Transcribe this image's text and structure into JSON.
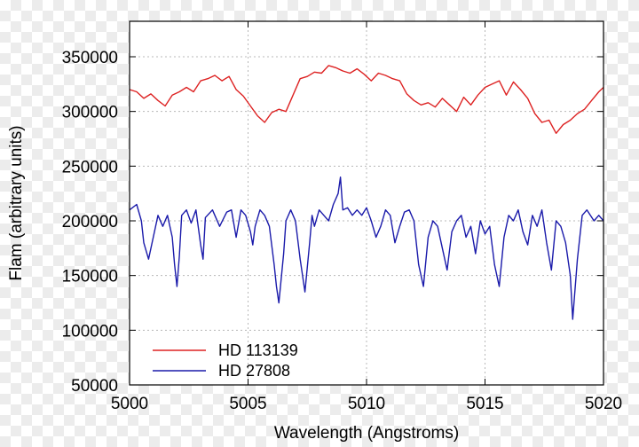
{
  "chart_data": {
    "type": "line",
    "xlabel": "Wavelength (Angstroms)",
    "ylabel": "Flam (arbitrary units)",
    "xlim": [
      5000,
      5020
    ],
    "ylim": [
      50000,
      380000
    ],
    "xticks": [
      5000,
      5005,
      5010,
      5015,
      5020
    ],
    "xtick_labels": [
      "5000",
      "5005",
      "5010",
      "5015",
      "5020"
    ],
    "yticks": [
      50000,
      100000,
      150000,
      200000,
      250000,
      300000,
      350000
    ],
    "ytick_labels": [
      "50000",
      "100000",
      "150000",
      "200000",
      "250000",
      "300000",
      "350000"
    ],
    "grid": true,
    "legend_position": "bottom-left",
    "series": [
      {
        "name": "HD 113139",
        "color": "#dd2222",
        "x": [
          5000.0,
          5000.3,
          5000.6,
          5000.9,
          5001.2,
          5001.5,
          5001.8,
          5002.1,
          5002.4,
          5002.7,
          5003.0,
          5003.3,
          5003.6,
          5003.9,
          5004.2,
          5004.5,
          5004.8,
          5005.1,
          5005.4,
          5005.7,
          5006.0,
          5006.3,
          5006.6,
          5006.9,
          5007.2,
          5007.5,
          5007.8,
          5008.1,
          5008.4,
          5008.7,
          5009.0,
          5009.3,
          5009.6,
          5009.9,
          5010.2,
          5010.5,
          5010.8,
          5011.1,
          5011.4,
          5011.7,
          5012.0,
          5012.3,
          5012.6,
          5012.9,
          5013.2,
          5013.5,
          5013.8,
          5014.1,
          5014.4,
          5014.7,
          5015.0,
          5015.3,
          5015.6,
          5015.9,
          5016.2,
          5016.5,
          5016.8,
          5017.1,
          5017.4,
          5017.7,
          5018.0,
          5018.3,
          5018.6,
          5018.9,
          5019.2,
          5019.5,
          5019.8,
          5020.0
        ],
        "y": [
          320000,
          318000,
          312000,
          316000,
          310000,
          305000,
          315000,
          318000,
          322000,
          318000,
          328000,
          330000,
          333000,
          328000,
          332000,
          320000,
          314000,
          305000,
          296000,
          290000,
          299000,
          302000,
          300000,
          315000,
          330000,
          332000,
          336000,
          335000,
          342000,
          340000,
          337000,
          335000,
          339000,
          334000,
          328000,
          335000,
          333000,
          330000,
          328000,
          316000,
          310000,
          306000,
          308000,
          304000,
          312000,
          306000,
          300000,
          313000,
          306000,
          315000,
          322000,
          325000,
          328000,
          315000,
          327000,
          320000,
          312000,
          298000,
          290000,
          292000,
          280000,
          288000,
          292000,
          298000,
          302000,
          310000,
          318000,
          322000
        ]
      },
      {
        "name": "HD 27808",
        "color": "#1a1aaa",
        "x": [
          5000.0,
          5000.3,
          5000.5,
          5000.6,
          5000.8,
          5001.0,
          5001.2,
          5001.4,
          5001.6,
          5001.8,
          5001.9,
          5002.0,
          5002.1,
          5002.2,
          5002.4,
          5002.6,
          5002.8,
          5003.0,
          5003.1,
          5003.2,
          5003.5,
          5003.8,
          5004.1,
          5004.3,
          5004.5,
          5004.7,
          5004.9,
          5005.1,
          5005.2,
          5005.3,
          5005.5,
          5005.7,
          5005.9,
          5006.1,
          5006.2,
          5006.3,
          5006.5,
          5006.6,
          5006.8,
          5007.0,
          5007.2,
          5007.4,
          5007.6,
          5007.7,
          5007.8,
          5008.0,
          5008.2,
          5008.4,
          5008.6,
          5008.8,
          5008.9,
          5009.0,
          5009.2,
          5009.4,
          5009.6,
          5009.8,
          5010.0,
          5010.2,
          5010.4,
          5010.6,
          5010.8,
          5011.0,
          5011.2,
          5011.4,
          5011.6,
          5011.8,
          5012.0,
          5012.2,
          5012.4,
          5012.6,
          5012.8,
          5013.0,
          5013.2,
          5013.4,
          5013.6,
          5013.8,
          5014.0,
          5014.2,
          5014.4,
          5014.6,
          5014.8,
          5015.0,
          5015.2,
          5015.4,
          5015.6,
          5015.8,
          5016.0,
          5016.2,
          5016.4,
          5016.6,
          5016.8,
          5017.0,
          5017.2,
          5017.4,
          5017.6,
          5017.8,
          5018.0,
          5018.2,
          5018.4,
          5018.6,
          5018.7,
          5018.9,
          5019.1,
          5019.3,
          5019.6,
          5019.8,
          5020.0
        ],
        "y": [
          210000,
          215000,
          200000,
          180000,
          165000,
          185000,
          205000,
          195000,
          205000,
          185000,
          160000,
          140000,
          168000,
          205000,
          210000,
          198000,
          210000,
          178000,
          165000,
          203000,
          210000,
          195000,
          208000,
          210000,
          185000,
          210000,
          205000,
          190000,
          178000,
          195000,
          210000,
          205000,
          195000,
          160000,
          140000,
          125000,
          170000,
          200000,
          210000,
          200000,
          165000,
          135000,
          180000,
          205000,
          195000,
          210000,
          205000,
          200000,
          215000,
          225000,
          240000,
          210000,
          212000,
          205000,
          210000,
          205000,
          212000,
          200000,
          185000,
          195000,
          210000,
          205000,
          180000,
          195000,
          208000,
          210000,
          200000,
          160000,
          140000,
          185000,
          200000,
          195000,
          175000,
          155000,
          190000,
          200000,
          205000,
          185000,
          195000,
          170000,
          200000,
          188000,
          195000,
          160000,
          140000,
          185000,
          205000,
          200000,
          210000,
          190000,
          178000,
          205000,
          195000,
          210000,
          180000,
          155000,
          200000,
          195000,
          180000,
          150000,
          110000,
          165000,
          205000,
          210000,
          200000,
          205000,
          200000
        ]
      }
    ]
  }
}
